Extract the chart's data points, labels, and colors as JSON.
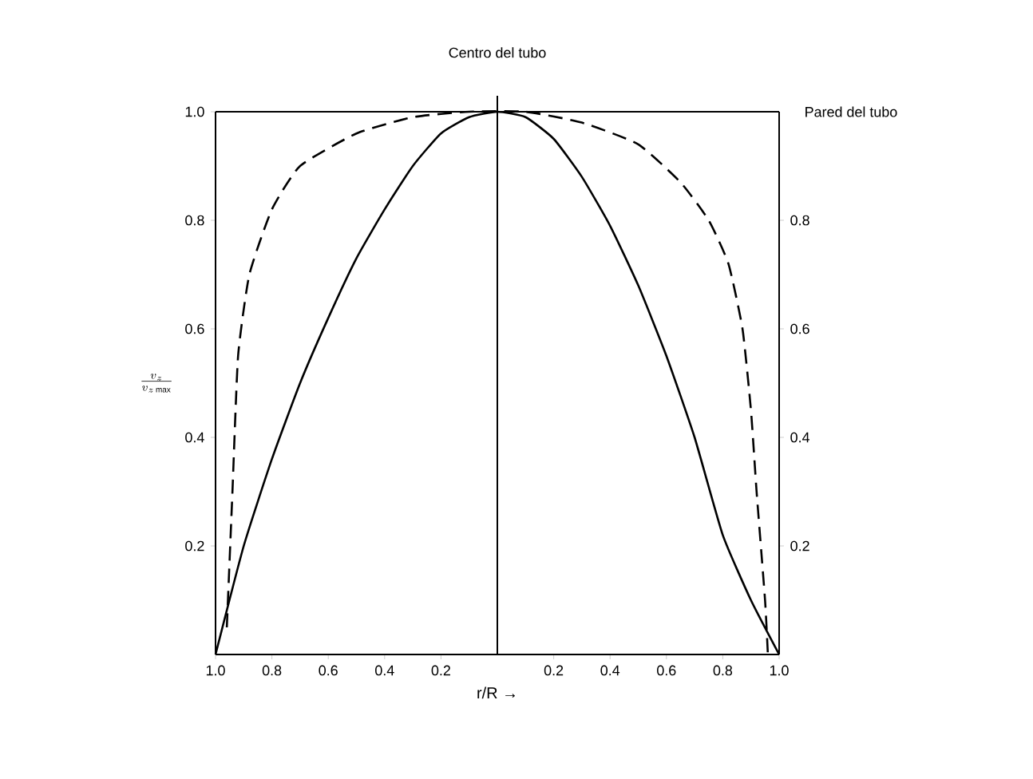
{
  "chart_data": {
    "type": "line",
    "xlabel": "r/R →",
    "ylabel": "\\frac{v_z}{v_{z\\,\\mathrm{max}}}",
    "x": [
      -1,
      -0.9,
      -0.8,
      -0.7,
      -0.6,
      -0.5,
      -0.4,
      -0.3,
      -0.2,
      -0.1,
      0,
      0.1,
      0.2,
      0.3,
      0.4,
      0.5,
      0.6,
      0.7,
      0.8,
      0.9,
      1
    ],
    "series": [
      {
        "color": "#000000",
        "line_style": "solid",
        "values": [
          0,
          0.2,
          0.36,
          0.5,
          0.62,
          0.73,
          0.82,
          0.9,
          0.96,
          0.99,
          1.0,
          0.99,
          0.95,
          0.88,
          0.79,
          0.68,
          0.55,
          0.4,
          0.22,
          0.1,
          0
        ]
      },
      {
        "color": "#000000",
        "line_style": "dashed",
        "x": [
          -0.96,
          -0.94,
          -0.92,
          -0.88,
          -0.8,
          -0.7,
          -0.5,
          -0.3,
          -0.1,
          0.1,
          0.3,
          0.5,
          0.65,
          0.75,
          0.82,
          0.87,
          0.9,
          0.92,
          0.95,
          0.96
        ],
        "values": [
          0.05,
          0.3,
          0.55,
          0.7,
          0.82,
          0.9,
          0.96,
          0.99,
          1.0,
          1.0,
          0.98,
          0.94,
          0.87,
          0.8,
          0.72,
          0.6,
          0.45,
          0.3,
          0.1,
          0
        ]
      }
    ],
    "xlim": [
      -1,
      1
    ],
    "xticks": [
      {
        "value": -1,
        "label": "1.0"
      },
      {
        "value": -0.8,
        "label": "0.8"
      },
      {
        "value": -0.6,
        "label": "0.6"
      },
      {
        "value": -0.4,
        "label": "0.4"
      },
      {
        "value": -0.2,
        "label": "0.2"
      },
      {
        "value": 0.2,
        "label": "0.2"
      },
      {
        "value": 0.4,
        "label": "0.4"
      },
      {
        "value": 0.6,
        "label": "0.6"
      },
      {
        "value": 0.8,
        "label": "0.8"
      },
      {
        "value": 1,
        "label": "1.0"
      }
    ],
    "ylim": [
      0,
      1
    ],
    "yticks": [
      0.2,
      0.4,
      0.6,
      0.8,
      {
        "value": 1,
        "label": "1.0"
      }
    ],
    "y2lim": [
      0,
      1
    ],
    "y2ticks": [
      0.2,
      0.4,
      0.6,
      0.8
    ],
    "ref_lines": [
      {
        "axis": "x",
        "value": 0,
        "label": "Centro del tubo"
      }
    ],
    "annotations": [
      "Pared del tubo"
    ],
    "grid": false,
    "marker": "none"
  }
}
